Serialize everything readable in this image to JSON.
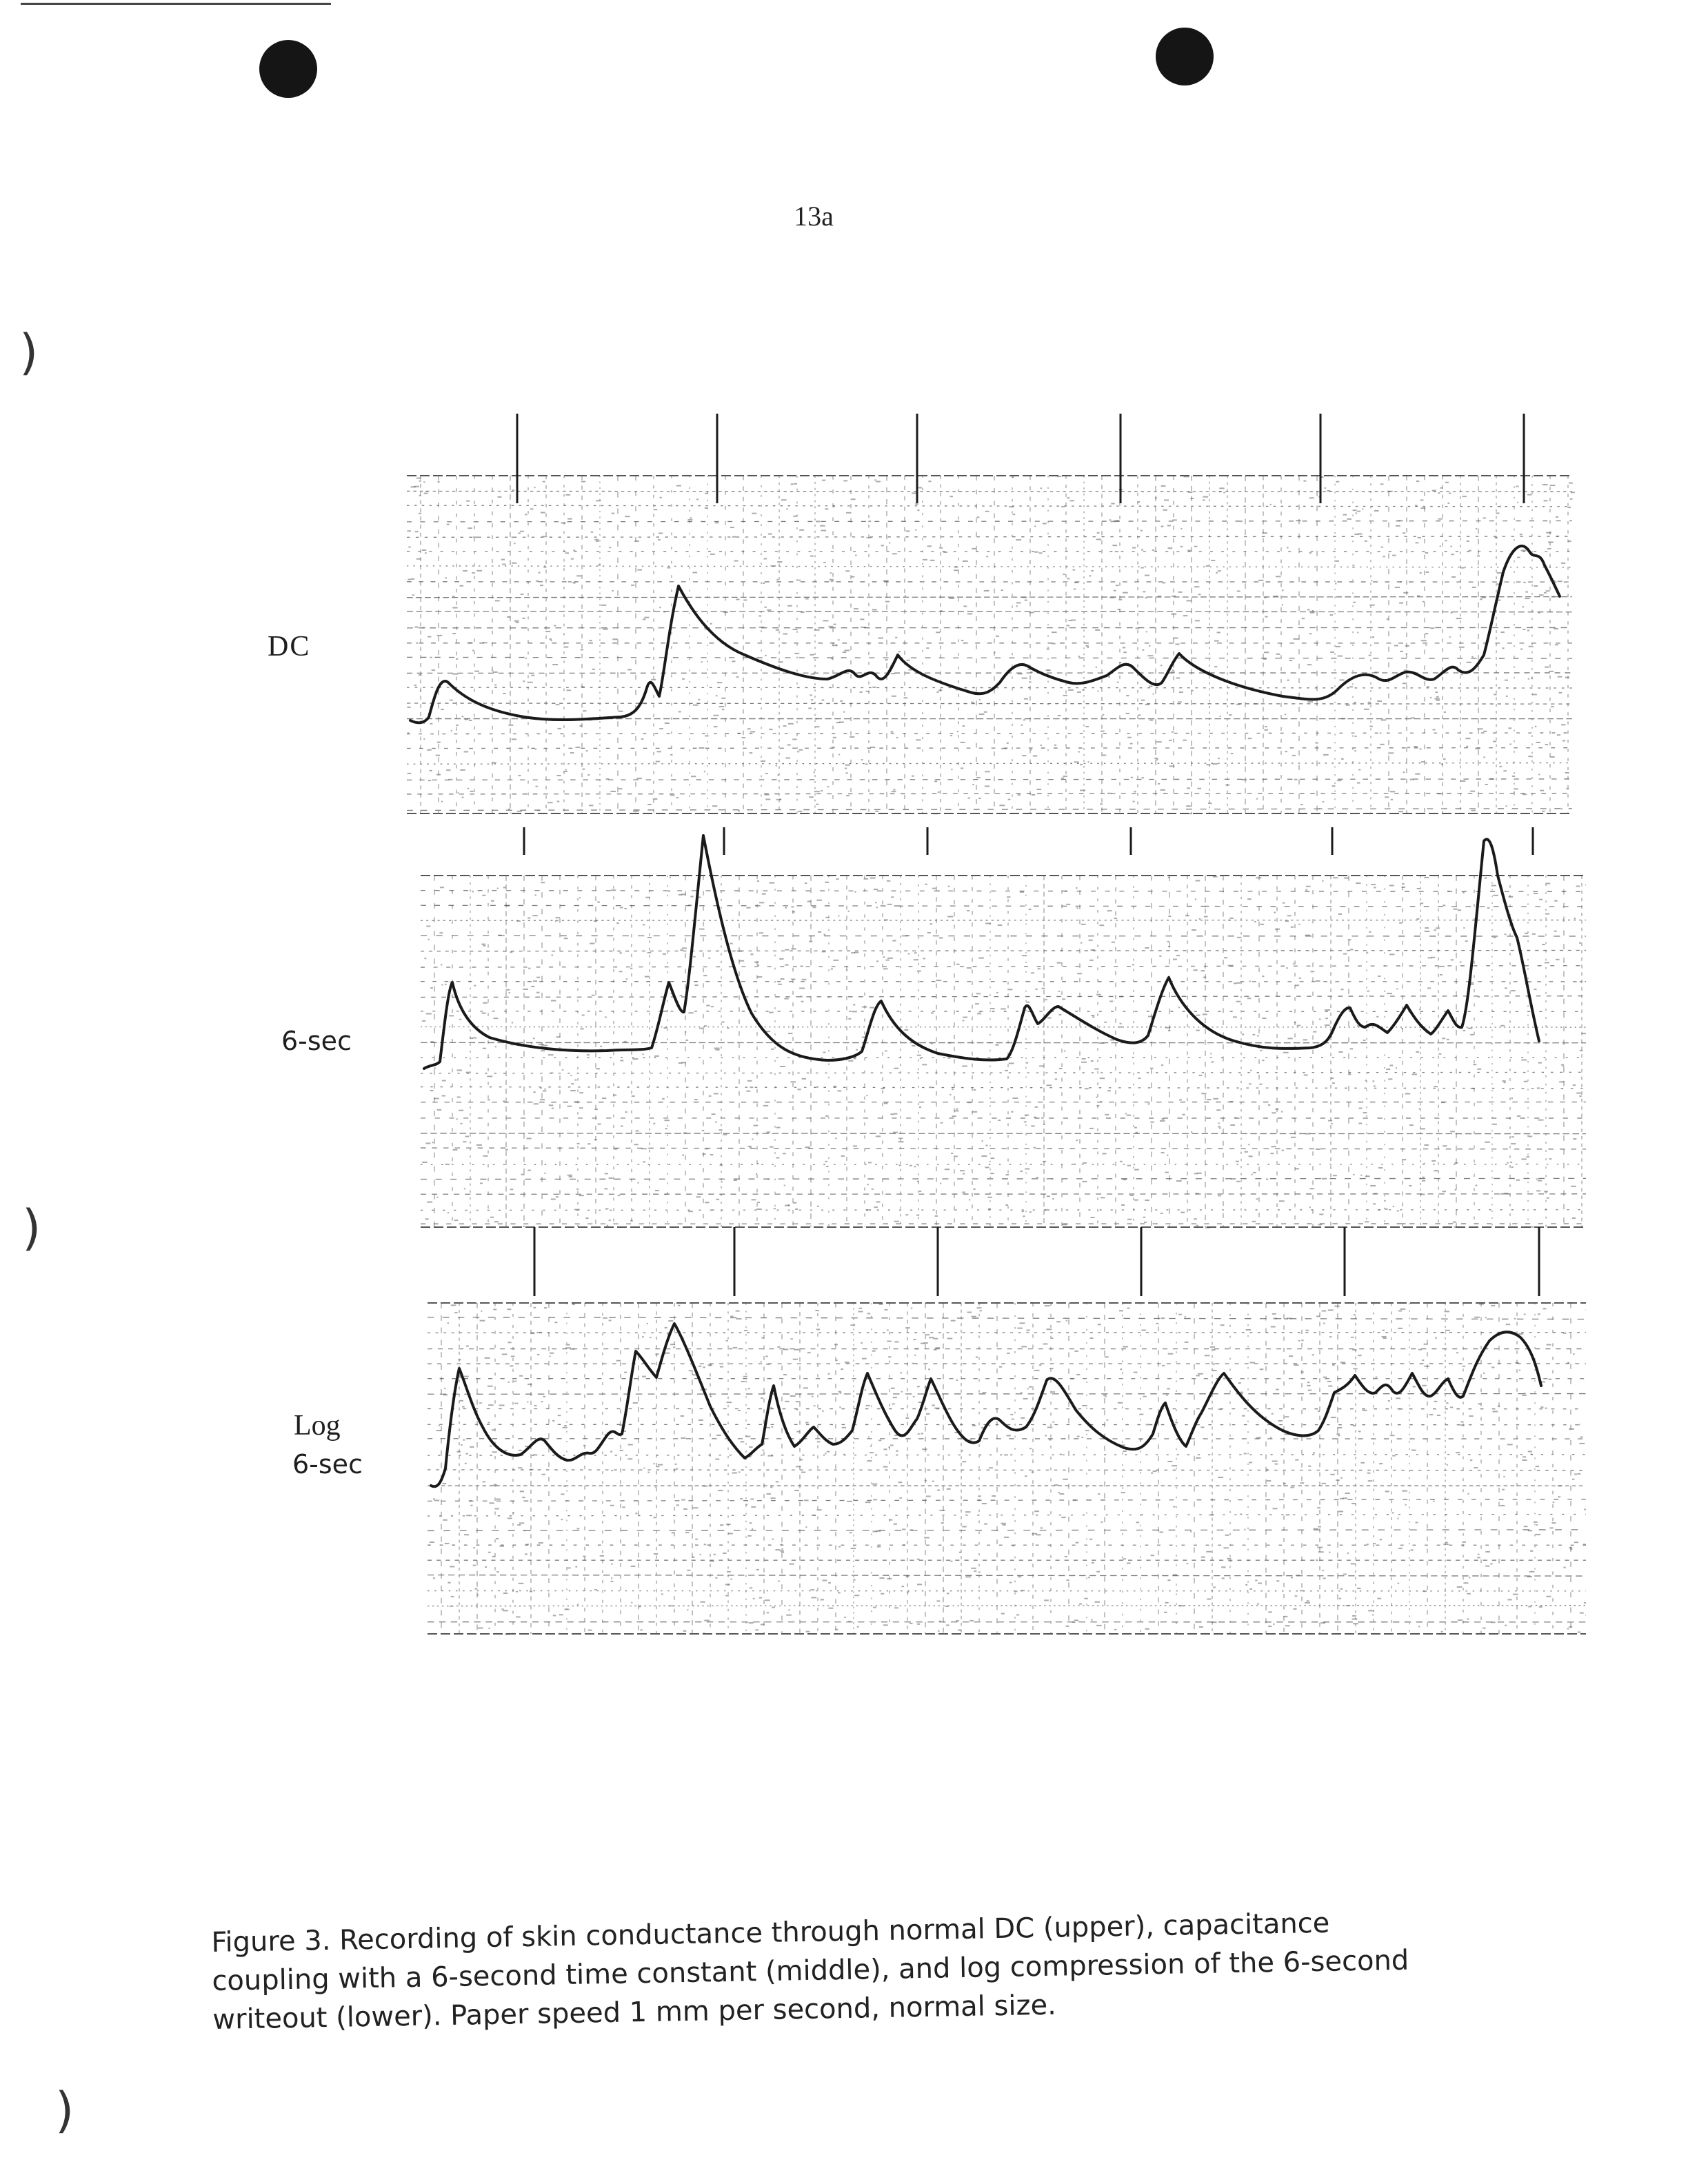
{
  "page": {
    "number": "13a"
  },
  "figure": {
    "traces": [
      {
        "id": "dc",
        "label_lines": [
          "DC"
        ]
      },
      {
        "id": "6sec",
        "label_lines": [
          "6-sec"
        ]
      },
      {
        "id": "log",
        "label_lines": [
          "Log",
          "6-sec"
        ]
      }
    ],
    "caption_lines": [
      "Figure 3.  Recording of skin conductance through normal DC (upper), capacitance",
      "coupling with a 6-second time constant (middle), and log compression of the 6-second",
      "writeout (lower).  Paper speed 1 mm per second, normal size."
    ]
  },
  "colors": {
    "ink": "#1a1a1a",
    "grid": "#555555",
    "paper": "#ffffff"
  }
}
